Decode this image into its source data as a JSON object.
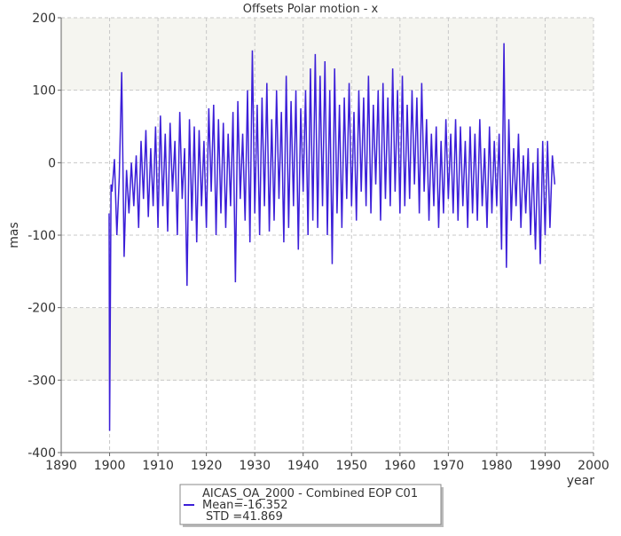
{
  "chart_data": {
    "type": "line",
    "title": "Offsets Polar motion - x",
    "xlabel": "year",
    "ylabel": "mas",
    "xlim": [
      1890,
      2000
    ],
    "xticks": [
      1890,
      1900,
      1910,
      1920,
      1930,
      1940,
      1950,
      1960,
      1970,
      1980,
      1990,
      2000
    ],
    "ylim": [
      -400,
      200
    ],
    "yticks": [
      -400,
      -300,
      -200,
      -100,
      0,
      100,
      200
    ],
    "grid": true,
    "x": [
      1899.9,
      1900.0,
      1900.1,
      1900.3,
      1900.5,
      1901,
      1901.5,
      1902,
      1902.5,
      1903,
      1903.5,
      1904,
      1904.5,
      1905,
      1905.5,
      1906,
      1906.5,
      1907,
      1907.5,
      1908,
      1908.5,
      1909,
      1909.5,
      1910,
      1910.5,
      1911,
      1911.5,
      1912,
      1912.5,
      1913,
      1913.5,
      1914,
      1914.5,
      1915,
      1915.5,
      1916,
      1916.5,
      1917,
      1917.5,
      1918,
      1918.5,
      1919,
      1919.5,
      1920,
      1920.5,
      1921,
      1921.5,
      1922,
      1922.5,
      1923,
      1923.5,
      1924,
      1924.5,
      1925,
      1925.5,
      1926,
      1926.5,
      1927,
      1927.5,
      1928,
      1928.5,
      1929,
      1929.5,
      1930,
      1930.5,
      1931,
      1931.5,
      1932,
      1932.5,
      1933,
      1933.5,
      1934,
      1934.5,
      1935,
      1935.5,
      1936,
      1936.5,
      1937,
      1937.5,
      1938,
      1938.5,
      1939,
      1939.5,
      1940,
      1940.5,
      1941,
      1941.5,
      1942,
      1942.5,
      1943,
      1943.5,
      1944,
      1944.5,
      1945,
      1945.5,
      1946,
      1946.5,
      1947,
      1947.5,
      1948,
      1948.5,
      1949,
      1949.5,
      1950,
      1950.5,
      1951,
      1951.5,
      1952,
      1952.5,
      1953,
      1953.5,
      1954,
      1954.5,
      1955,
      1955.5,
      1956,
      1956.5,
      1957,
      1957.5,
      1958,
      1958.5,
      1959,
      1959.5,
      1960,
      1960.5,
      1961,
      1961.5,
      1962,
      1962.5,
      1963,
      1963.5,
      1964,
      1964.5,
      1965,
      1965.5,
      1966,
      1966.5,
      1967,
      1967.5,
      1968,
      1968.5,
      1969,
      1969.5,
      1970,
      1970.5,
      1971,
      1971.5,
      1972,
      1972.5,
      1973,
      1973.5,
      1974,
      1974.5,
      1975,
      1975.5,
      1976,
      1976.5,
      1977,
      1977.5,
      1978,
      1978.5,
      1979,
      1979.5,
      1980,
      1980.5,
      1981,
      1981.5,
      1982,
      1982.5,
      1983,
      1983.5,
      1984,
      1984.5,
      1985,
      1985.5,
      1986,
      1986.5,
      1987,
      1987.5,
      1988,
      1988.5,
      1989,
      1989.5,
      1990,
      1990.5,
      1991,
      1991.5,
      1992
    ],
    "series": [
      {
        "name": "AICAS_OA_2000 - Combined EOP C01",
        "color": "#3c1fd8",
        "values": [
          -70,
          -370,
          -260,
          -30,
          -40,
          5,
          -100,
          -20,
          125,
          -130,
          -10,
          -70,
          0,
          -60,
          10,
          -90,
          30,
          -50,
          45,
          -75,
          20,
          -60,
          50,
          -90,
          65,
          -60,
          40,
          -95,
          55,
          -40,
          30,
          -100,
          70,
          -50,
          20,
          -170,
          60,
          -80,
          50,
          -110,
          45,
          -60,
          30,
          -90,
          75,
          -40,
          80,
          -100,
          60,
          -70,
          55,
          -90,
          40,
          -60,
          70,
          -165,
          85,
          -50,
          40,
          -80,
          100,
          -110,
          155,
          -70,
          80,
          -100,
          90,
          -60,
          110,
          -95,
          60,
          -80,
          100,
          -50,
          70,
          -110,
          120,
          -90,
          85,
          -60,
          100,
          -120,
          75,
          -40,
          100,
          -100,
          130,
          -80,
          150,
          -90,
          120,
          -60,
          140,
          -100,
          100,
          -140,
          130,
          -70,
          80,
          -90,
          90,
          -50,
          110,
          -60,
          70,
          -80,
          100,
          -40,
          90,
          -60,
          120,
          -70,
          80,
          -30,
          100,
          -80,
          110,
          -50,
          90,
          -60,
          130,
          -40,
          100,
          -70,
          120,
          -60,
          80,
          -50,
          100,
          -30,
          90,
          -70,
          110,
          -40,
          60,
          -80,
          40,
          -60,
          50,
          -90,
          30,
          -70,
          60,
          -50,
          40,
          -70,
          60,
          -80,
          50,
          -60,
          30,
          -90,
          50,
          -70,
          40,
          -80,
          60,
          -60,
          20,
          -90,
          50,
          -70,
          30,
          -60,
          40,
          -120,
          165,
          -145,
          60,
          -80,
          20,
          -60,
          40,
          -90,
          10,
          -70,
          20,
          -100,
          0,
          -120,
          20,
          -140,
          30,
          -100,
          30,
          -90,
          10,
          -30
        ]
      }
    ],
    "legend_lines": [
      "Mean=-16.352",
      "STD =41.869"
    ]
  }
}
